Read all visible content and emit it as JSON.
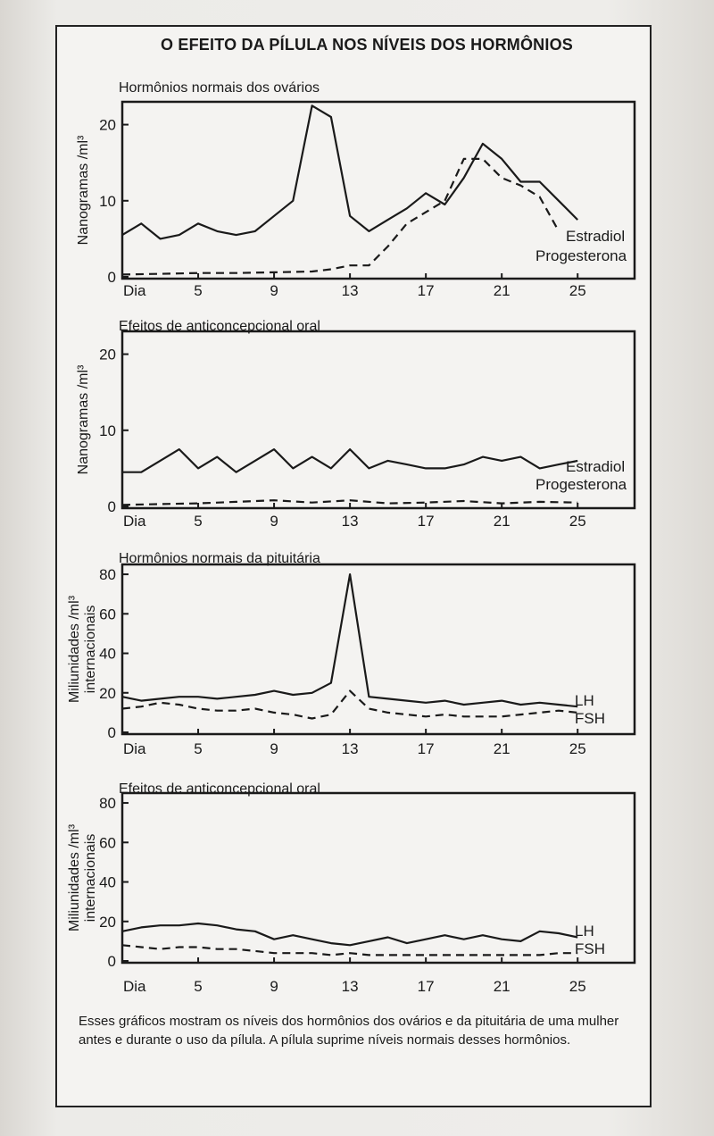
{
  "figure": {
    "title": "O  EFEITO DA PÍLULA NOS NÍVEIS DOS HORMÔNIOS",
    "caption": "Esses gráficos mostram os níveis dos hormônios dos ovários e da pituitária de uma mulher antes e durante o uso da pílula. A pílula suprime níveis normais desses hormônios."
  },
  "chart_data": [
    {
      "type": "line",
      "title": "Hormônios normais dos ovários",
      "ylabel": "Nanogramas  /ml³",
      "xlabel": "",
      "x_ticks": [
        "Dia",
        "5",
        "9",
        "13",
        "17",
        "21",
        "25"
      ],
      "y_ticks": [
        "0",
        "10",
        "20"
      ],
      "ylim": [
        0,
        23
      ],
      "xlim": [
        1,
        28
      ],
      "grid": false,
      "series": [
        {
          "name": "Estradiol",
          "style": "solid",
          "x": [
            1,
            2,
            3,
            4,
            5,
            6,
            7,
            8,
            9,
            10,
            11,
            12,
            13,
            14,
            15,
            16,
            17,
            18,
            19,
            20,
            21,
            22,
            23,
            24,
            25
          ],
          "y": [
            5.5,
            7,
            5,
            5.5,
            7,
            6,
            5.5,
            6,
            8,
            10,
            22.5,
            21,
            8,
            6,
            7.5,
            9,
            11,
            9.5,
            13,
            17.5,
            15.5,
            12.5,
            12.5,
            10,
            7.5
          ]
        },
        {
          "name": "Progesterona",
          "style": "dashed",
          "x": [
            1,
            3,
            5,
            7,
            9,
            11,
            12,
            13,
            14,
            15,
            16,
            17,
            18,
            19,
            20,
            21,
            22,
            23,
            24
          ],
          "y": [
            0.3,
            0.4,
            0.5,
            0.5,
            0.6,
            0.7,
            1,
            1.5,
            1.5,
            4,
            7,
            8.5,
            10,
            15.5,
            15.5,
            13,
            12,
            10.5,
            6
          ]
        }
      ],
      "legend": "right of line ends"
    },
    {
      "type": "line",
      "title": "Efeitos de anticoncepcional oral",
      "ylabel": "Nanogramas  /ml³",
      "xlabel": "",
      "x_ticks": [
        "Dia",
        "5",
        "9",
        "13",
        "17",
        "21",
        "25"
      ],
      "y_ticks": [
        "0",
        "10",
        "20"
      ],
      "ylim": [
        0,
        23
      ],
      "xlim": [
        1,
        28
      ],
      "grid": false,
      "series": [
        {
          "name": "Estradiol",
          "style": "solid",
          "x": [
            1,
            2,
            3,
            4,
            5,
            6,
            7,
            8,
            9,
            10,
            11,
            12,
            13,
            14,
            15,
            16,
            17,
            18,
            19,
            20,
            21,
            22,
            23,
            24,
            25
          ],
          "y": [
            4.5,
            4.5,
            6,
            7.5,
            5,
            6.5,
            4.5,
            6,
            7.5,
            5,
            6.5,
            5,
            7.5,
            5,
            6,
            5.5,
            5,
            5,
            5.5,
            6.5,
            6,
            6.5,
            5,
            5.5,
            6
          ]
        },
        {
          "name": "Progesterona",
          "style": "dashed",
          "x": [
            1,
            3,
            5,
            7,
            9,
            11,
            13,
            15,
            17,
            19,
            21,
            23,
            25
          ],
          "y": [
            0.2,
            0.3,
            0.4,
            0.6,
            0.8,
            0.5,
            0.8,
            0.4,
            0.5,
            0.7,
            0.4,
            0.6,
            0.5
          ]
        }
      ],
      "legend": "right of line ends"
    },
    {
      "type": "line",
      "title": "Hormônios normais da pituitária",
      "ylabel": "Miliunidades  /ml³ internacionais",
      "xlabel": "",
      "x_ticks": [
        "Dia",
        "5",
        "9",
        "13",
        "17",
        "21",
        "25"
      ],
      "y_ticks": [
        "0",
        "20",
        "40",
        "60",
        "80"
      ],
      "ylim": [
        0,
        85
      ],
      "xlim": [
        1,
        28
      ],
      "grid": false,
      "series": [
        {
          "name": "LH",
          "style": "solid",
          "x": [
            1,
            2,
            3,
            4,
            5,
            6,
            7,
            8,
            9,
            10,
            11,
            12,
            13,
            14,
            15,
            16,
            17,
            18,
            19,
            20,
            21,
            22,
            23,
            24,
            25
          ],
          "y": [
            18,
            16,
            17,
            18,
            18,
            17,
            18,
            19,
            21,
            19,
            20,
            25,
            80,
            18,
            17,
            16,
            15,
            16,
            14,
            15,
            16,
            14,
            15,
            14,
            13
          ]
        },
        {
          "name": "FSH",
          "style": "dashed",
          "x": [
            1,
            2,
            3,
            4,
            5,
            6,
            7,
            8,
            9,
            10,
            11,
            12,
            13,
            14,
            15,
            16,
            17,
            18,
            19,
            20,
            21,
            22,
            23,
            24,
            25
          ],
          "y": [
            12,
            13,
            15,
            14,
            12,
            11,
            11,
            12,
            10,
            9,
            7,
            9,
            21,
            12,
            10,
            9,
            8,
            9,
            8,
            8,
            8,
            9,
            10,
            11,
            10
          ]
        }
      ],
      "legend": "right of line ends"
    },
    {
      "type": "line",
      "title": "Efeitos de anticoncepcional oral",
      "ylabel": "Miliunidades  /ml³ internacionais",
      "xlabel": "",
      "x_ticks": [
        "Dia",
        "5",
        "9",
        "13",
        "17",
        "21",
        "25"
      ],
      "y_ticks": [
        "0",
        "20",
        "40",
        "60",
        "80"
      ],
      "ylim": [
        0,
        85
      ],
      "xlim": [
        1,
        28
      ],
      "grid": false,
      "series": [
        {
          "name": "LH",
          "style": "solid",
          "x": [
            1,
            2,
            3,
            4,
            5,
            6,
            7,
            8,
            9,
            10,
            11,
            12,
            13,
            14,
            15,
            16,
            17,
            18,
            19,
            20,
            21,
            22,
            23,
            24,
            25
          ],
          "y": [
            15,
            17,
            18,
            18,
            19,
            18,
            16,
            15,
            11,
            13,
            11,
            9,
            8,
            10,
            12,
            9,
            11,
            13,
            11,
            13,
            11,
            10,
            15,
            14,
            12
          ]
        },
        {
          "name": "FSH",
          "style": "dashed",
          "x": [
            1,
            2,
            3,
            4,
            5,
            6,
            7,
            8,
            9,
            10,
            11,
            12,
            13,
            14,
            15,
            16,
            17,
            18,
            19,
            20,
            21,
            22,
            23,
            24,
            25
          ],
          "y": [
            8,
            7,
            6,
            7,
            7,
            6,
            6,
            5,
            4,
            4,
            4,
            3,
            4,
            3,
            3,
            3,
            3,
            3,
            3,
            3,
            3,
            3,
            3,
            4,
            4
          ]
        }
      ],
      "legend": "right of line ends"
    }
  ]
}
